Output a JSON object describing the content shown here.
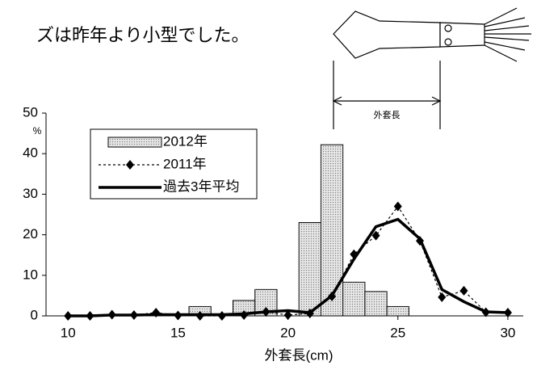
{
  "header": {
    "text": "ズは昨年より小型でした。"
  },
  "figure": {
    "label": "外套長"
  },
  "chart_data": {
    "type": "bar",
    "xlabel": "外套長(cm)",
    "ylabel": "%",
    "x": [
      10,
      11,
      12,
      13,
      14,
      15,
      16,
      17,
      18,
      19,
      20,
      21,
      22,
      23,
      24,
      25,
      26,
      27,
      28,
      29,
      30
    ],
    "series": [
      {
        "name": "2012年",
        "type": "bar",
        "color": "#e4e4e4",
        "values": [
          0,
          0,
          0,
          0,
          0,
          0,
          2.3,
          0,
          3.8,
          6.5,
          0,
          23,
          42.2,
          8.3,
          6,
          2.3,
          0,
          0,
          0,
          0,
          0
        ]
      },
      {
        "name": "2011年",
        "type": "line",
        "dashed": true,
        "marker": "diamond",
        "color": "#000000",
        "values": [
          0,
          0,
          0.3,
          0.2,
          0.8,
          0.1,
          0,
          0,
          0.2,
          1,
          0.2,
          0.6,
          4.8,
          15.2,
          19.8,
          27,
          18.5,
          4.6,
          6.2,
          0.9,
          0.8
        ]
      },
      {
        "name": "過去3年平均",
        "type": "line",
        "dashed": false,
        "color": "#000000",
        "values": [
          0,
          0,
          0.2,
          0.2,
          0.3,
          0.3,
          0.3,
          0.3,
          0.5,
          1,
          1.3,
          0.8,
          5,
          14,
          22,
          23.8,
          19,
          6.5,
          3.5,
          1,
          0.8
        ]
      }
    ],
    "xlim": [
      9,
      30.7
    ],
    "xticks": [
      10,
      15,
      20,
      25,
      30
    ],
    "ylim": [
      0,
      50
    ],
    "yticks": [
      0,
      10,
      20,
      30,
      40,
      50
    ]
  }
}
